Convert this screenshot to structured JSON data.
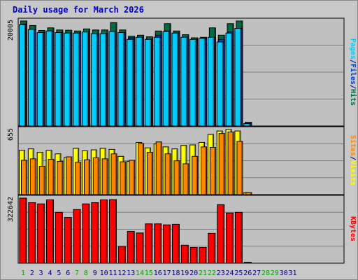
{
  "title": "Daily usage for March 2026",
  "colors": {
    "hits": "#006c44",
    "files": "#0040c0",
    "pages": "#00ccff",
    "visits": "#ffff00",
    "sites": "#ff8800",
    "kbytes": "#ff0000",
    "panel_bg": "#c0c0c0",
    "weekend_day": "#00aa00",
    "weekday": "#000080"
  },
  "chart_data": [
    {
      "type": "bar",
      "title": "Daily usage for March 2026",
      "panel": "top",
      "max_label": "20005",
      "ylim": [
        0,
        20005
      ],
      "categories": [
        "1",
        "2",
        "3",
        "4",
        "5",
        "6",
        "7",
        "8",
        "9",
        "10",
        "11",
        "12",
        "13",
        "14",
        "15",
        "16",
        "17",
        "18",
        "19",
        "20",
        "21",
        "22",
        "23",
        "24",
        "25",
        "26",
        "27",
        "28",
        "29",
        "30",
        "31"
      ],
      "series": [
        {
          "name": "Hits",
          "values": [
            20005,
            19150,
            18200,
            18700,
            18300,
            18250,
            18100,
            18500,
            18300,
            18300,
            19700,
            18300,
            17100,
            17300,
            17000,
            18100,
            19500,
            18100,
            17400,
            16800,
            16900,
            18700,
            17300,
            19500,
            20005,
            700,
            0,
            0,
            0,
            0,
            0
          ]
        },
        {
          "name": "Files",
          "values": [
            19400,
            18400,
            17800,
            18100,
            17800,
            17700,
            17700,
            17900,
            17600,
            17600,
            18000,
            17800,
            16800,
            16900,
            16500,
            17300,
            18100,
            17700,
            16900,
            16500,
            16700,
            16900,
            16500,
            17900,
            18600,
            700,
            0,
            0,
            0,
            0,
            0
          ]
        },
        {
          "name": "Pages",
          "values": [
            19300,
            18400,
            17800,
            18100,
            17800,
            17700,
            17700,
            17900,
            17600,
            17600,
            18000,
            17800,
            16500,
            16900,
            16500,
            16900,
            18000,
            17700,
            16900,
            16500,
            16700,
            16900,
            16000,
            17700,
            18600,
            450,
            0,
            0,
            0,
            0,
            0
          ]
        }
      ]
    },
    {
      "type": "bar",
      "panel": "middle",
      "max_label": "655",
      "ylim": [
        0,
        655
      ],
      "categories": [
        "1",
        "2",
        "3",
        "4",
        "5",
        "6",
        "7",
        "8",
        "9",
        "10",
        "11",
        "12",
        "13",
        "14",
        "15",
        "16",
        "17",
        "18",
        "19",
        "20",
        "21",
        "22",
        "23",
        "24",
        "25",
        "26",
        "27",
        "28",
        "29",
        "30",
        "31"
      ],
      "series": [
        {
          "name": "Visits",
          "values": [
            445,
            460,
            425,
            445,
            410,
            375,
            465,
            440,
            450,
            465,
            455,
            385,
            335,
            525,
            470,
            510,
            480,
            460,
            495,
            500,
            525,
            605,
            640,
            655,
            640,
            20,
            0,
            0,
            0,
            0,
            0
          ]
        },
        {
          "name": "Sites",
          "values": [
            345,
            360,
            285,
            355,
            335,
            380,
            325,
            350,
            370,
            360,
            410,
            330,
            345,
            515,
            425,
            530,
            410,
            340,
            310,
            385,
            480,
            475,
            615,
            630,
            535,
            20,
            0,
            0,
            0,
            0,
            0
          ]
        }
      ]
    },
    {
      "type": "bar",
      "panel": "bottom",
      "max_label": "322642",
      "ylim": [
        0,
        322642
      ],
      "categories": [
        "1",
        "2",
        "3",
        "4",
        "5",
        "6",
        "7",
        "8",
        "9",
        "10",
        "11",
        "12",
        "13",
        "14",
        "15",
        "16",
        "17",
        "18",
        "19",
        "20",
        "21",
        "22",
        "23",
        "24",
        "25",
        "26",
        "27",
        "28",
        "29",
        "30",
        "31"
      ],
      "series": [
        {
          "name": "KBytes",
          "values": [
            322642,
            300000,
            294000,
            314000,
            252000,
            227000,
            266000,
            294000,
            300000,
            314000,
            315000,
            83000,
            158000,
            150000,
            195000,
            195000,
            190000,
            193000,
            89000,
            78000,
            78000,
            148000,
            290000,
            249000,
            252000,
            5000,
            0,
            0,
            0,
            0,
            0
          ]
        }
      ]
    }
  ],
  "x_days": [
    "1",
    "2",
    "3",
    "4",
    "5",
    "6",
    "7",
    "8",
    "9",
    "10",
    "11",
    "12",
    "13",
    "14",
    "15",
    "16",
    "17",
    "18",
    "19",
    "20",
    "21",
    "22",
    "23",
    "24",
    "25",
    "26",
    "27",
    "28",
    "29",
    "30",
    "31"
  ],
  "weekend_days": [
    1,
    7,
    8,
    14,
    15,
    21,
    22,
    28,
    29
  ],
  "right_labels": {
    "top": [
      {
        "text": "Pages",
        "color_key": "pages"
      },
      {
        "text": "/",
        "color_key": "weekday"
      },
      {
        "text": "Files",
        "color_key": "files"
      },
      {
        "text": "/",
        "color_key": "weekday"
      },
      {
        "text": "Hits",
        "color_key": "hits"
      }
    ],
    "middle": [
      {
        "text": "Sites",
        "color_key": "sites"
      },
      {
        "text": "/",
        "color_key": "weekday"
      },
      {
        "text": "Visits",
        "color_key": "visits"
      }
    ],
    "bottom": [
      {
        "text": "KBytes",
        "color_key": "kbytes"
      }
    ]
  }
}
